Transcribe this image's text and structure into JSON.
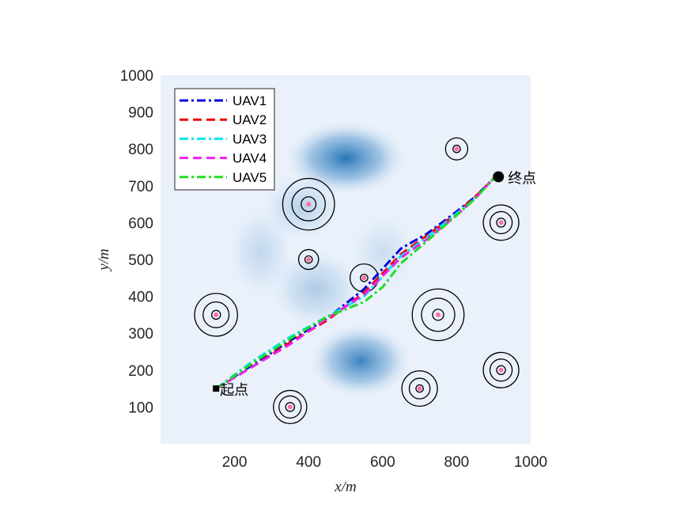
{
  "chart_data": {
    "type": "line",
    "title": "",
    "xlabel": "x/m",
    "ylabel": "y/m",
    "xlim": [
      0,
      1000
    ],
    "ylim": [
      0,
      1000
    ],
    "xticks": [
      200,
      400,
      600,
      800,
      1000
    ],
    "yticks": [
      100,
      200,
      300,
      400,
      500,
      600,
      700,
      800,
      900,
      1000
    ],
    "grid": false,
    "legend_position": "top-left",
    "background": {
      "base_color": "#eaf1fb",
      "threat_fields": [
        {
          "x": 500,
          "y": 775,
          "sx": 90,
          "sy": 55,
          "intensity": 0.95
        },
        {
          "x": 540,
          "y": 225,
          "sx": 75,
          "sy": 55,
          "intensity": 0.85
        },
        {
          "x": 420,
          "y": 420,
          "sx": 70,
          "sy": 60,
          "intensity": 0.3
        },
        {
          "x": 270,
          "y": 520,
          "sx": 50,
          "sy": 70,
          "intensity": 0.2
        },
        {
          "x": 600,
          "y": 520,
          "sx": 50,
          "sy": 60,
          "intensity": 0.15
        },
        {
          "x": 380,
          "y": 640,
          "sx": 60,
          "sy": 50,
          "intensity": 0.25
        }
      ]
    },
    "series": [
      {
        "name": "UAV1",
        "color": "#0000dd",
        "dash": "dashdot",
        "x": [
          150,
          250,
          350,
          450,
          550,
          650,
          720,
          800,
          850,
          900
        ],
        "y": [
          150,
          215,
          280,
          340,
          420,
          530,
          570,
          630,
          670,
          720
        ]
      },
      {
        "name": "UAV2",
        "color": "#ee0000",
        "dash": "dash",
        "x": [
          150,
          250,
          350,
          450,
          550,
          650,
          720,
          800,
          850,
          900
        ],
        "y": [
          150,
          210,
          275,
          335,
          410,
          515,
          565,
          625,
          670,
          720
        ]
      },
      {
        "name": "UAV3",
        "color": "#00e5ee",
        "dash": "dashdot",
        "x": [
          150,
          250,
          350,
          450,
          550,
          650,
          720,
          800,
          850,
          900
        ],
        "y": [
          150,
          225,
          290,
          345,
          400,
          510,
          560,
          625,
          665,
          720
        ]
      },
      {
        "name": "UAV4",
        "color": "#ee22ee",
        "dash": "dash",
        "x": [
          150,
          250,
          350,
          450,
          550,
          650,
          720,
          800,
          850,
          900
        ],
        "y": [
          150,
          210,
          270,
          340,
          405,
          505,
          555,
          620,
          665,
          720
        ]
      },
      {
        "name": "UAV5",
        "color": "#22dd22",
        "dash": "dashdot",
        "x": [
          150,
          250,
          350,
          450,
          500,
          550,
          600,
          650,
          720,
          800,
          850,
          900
        ],
        "y": [
          150,
          220,
          285,
          345,
          365,
          385,
          425,
          490,
          550,
          620,
          665,
          720
        ]
      }
    ],
    "obstacles": [
      {
        "x": 800,
        "y": 800,
        "rings": [
          10,
          30
        ]
      },
      {
        "x": 400,
        "y": 650,
        "rings": [
          20,
          45,
          70
        ]
      },
      {
        "x": 920,
        "y": 600,
        "rings": [
          12,
          30,
          48
        ]
      },
      {
        "x": 400,
        "y": 500,
        "rings": [
          10,
          27
        ]
      },
      {
        "x": 550,
        "y": 450,
        "rings": [
          10,
          38
        ]
      },
      {
        "x": 150,
        "y": 350,
        "rings": [
          12,
          35,
          58
        ]
      },
      {
        "x": 750,
        "y": 350,
        "rings": [
          15,
          45,
          70
        ]
      },
      {
        "x": 920,
        "y": 200,
        "rings": [
          12,
          30,
          48
        ]
      },
      {
        "x": 700,
        "y": 150,
        "rings": [
          10,
          28,
          48
        ]
      },
      {
        "x": 350,
        "y": 100,
        "rings": [
          12,
          30,
          45
        ]
      }
    ],
    "start": {
      "x": 150,
      "y": 150,
      "label": "起点"
    },
    "end": {
      "x": 900,
      "y": 720,
      "label": "终点"
    }
  }
}
